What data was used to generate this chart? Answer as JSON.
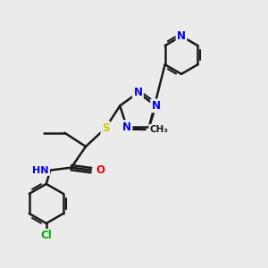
{
  "background_color": "#ebebeb",
  "bond_color": "#1a1a1a",
  "figsize": [
    3.0,
    3.0
  ],
  "dpi": 100,
  "atom_colors": {
    "N": "#0000ee",
    "O": "#ee0000",
    "S": "#cccc00",
    "Cl": "#00aa00",
    "C": "#1a1a1a",
    "H": "#666666"
  },
  "xlim": [
    0,
    10
  ],
  "ylim": [
    0,
    10
  ]
}
